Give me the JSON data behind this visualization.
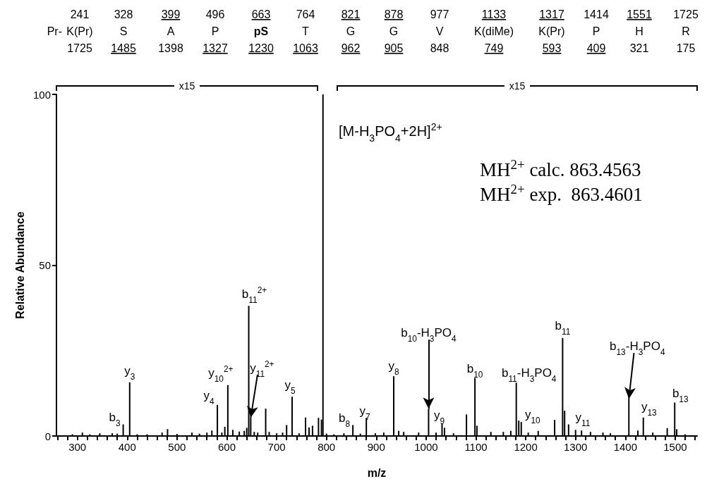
{
  "chart_data": {
    "type": "bar",
    "xlabel": "m/z",
    "ylabel": "Relative Abundance",
    "color": "#000000",
    "x": [
      290,
      310,
      325,
      345,
      370,
      380,
      392,
      405,
      420,
      440,
      470,
      481,
      500,
      530,
      545,
      560,
      570,
      581,
      590,
      596,
      602,
      612,
      625,
      635,
      640,
      644,
      648,
      655,
      662,
      678,
      685,
      700,
      712,
      720,
      731,
      745,
      758,
      765,
      772,
      784,
      790,
      793,
      800,
      815,
      835,
      853,
      868,
      880,
      898,
      915,
      935,
      945,
      955,
      985,
      1005,
      1020,
      1032,
      1037,
      1055,
      1081,
      1098,
      1102,
      1130,
      1155,
      1170,
      1181,
      1186,
      1191,
      1205,
      1225,
      1258,
      1274,
      1278,
      1286,
      1300,
      1312,
      1330,
      1355,
      1370,
      1407,
      1425,
      1436,
      1455,
      1484,
      1499,
      1503,
      1520
    ],
    "values": [
      0.5,
      1.0,
      0.5,
      0.8,
      0.8,
      0.7,
      3.4,
      15.7,
      0.5,
      0.5,
      1.0,
      2.0,
      0.6,
      1.0,
      0.7,
      1.0,
      1.6,
      9.1,
      1.0,
      2.7,
      14.9,
      1.8,
      1.3,
      1.5,
      2.4,
      38.1,
      5.4,
      1.2,
      1.0,
      8.0,
      1.2,
      0.8,
      1.0,
      3.2,
      11.5,
      0.8,
      5.4,
      2.5,
      3.0,
      5.3,
      4.8,
      100,
      0.7,
      0.5,
      0.8,
      3.2,
      0.7,
      5.3,
      0.8,
      1.0,
      17.5,
      1.5,
      1.2,
      1.0,
      8.0,
      1.0,
      3.6,
      2.4,
      0.8,
      6.3,
      17.0,
      3.0,
      1.2,
      1.2,
      1.5,
      15.6,
      4.5,
      4.1,
      1.0,
      1.5,
      4.7,
      28.7,
      7.4,
      3.4,
      1.8,
      1.6,
      1.2,
      1.0,
      0.8,
      10.9,
      1.6,
      5.4,
      1.0,
      2.3,
      9.8,
      2.0,
      0.5
    ],
    "xlim": [
      258,
      1544
    ],
    "xticks": [
      300,
      400,
      500,
      600,
      700,
      800,
      900,
      1000,
      1100,
      1200,
      1300,
      1400,
      1500
    ],
    "ylim": [
      0,
      100
    ],
    "yticks": [
      0,
      50,
      100
    ],
    "annotations": [
      "241",
      "328",
      "399",
      "496",
      "663",
      "764",
      "821",
      "878",
      "977",
      "1133",
      "1317",
      "1414",
      "1551",
      "1725",
      "Pr-",
      "K(Pr)",
      "S",
      "A",
      "P",
      "pS",
      "T",
      "G",
      "G",
      "V",
      "K(diMe)",
      "K(Pr)",
      "P",
      "H",
      "R",
      "1725",
      "1485",
      "1398",
      "1327",
      "1230",
      "1063",
      "962",
      "905",
      "848",
      "749",
      "593",
      "409",
      "321",
      "175",
      "[M-H$_{3}$PO$_{4}$+2H]$^{2+}$",
      "MH$^{2+}$ calc. 863.4563",
      "MH$^{2+}$ exp.  863.4601",
      "x15",
      "x15",
      {
        "text": "b$_{3}$",
        "x": 392,
        "y": 3.4
      },
      {
        "text": "y$_{3}$",
        "x": 405,
        "y": 15.7
      },
      {
        "text": "y$_{4}$",
        "x": 581,
        "y": 9.1
      },
      {
        "text": "y$_{10}$$^{2+}$",
        "x": 602,
        "y": 14.9
      },
      {
        "text": "b$_{11}$$^{2+}$",
        "x": 644,
        "y": 38.1
      },
      {
        "text": "y$_{11}$$^{2+}$",
        "x": 648,
        "y": 5.4
      },
      {
        "text": "y$_{5}$",
        "x": 731,
        "y": 11.5
      },
      {
        "text": "b$_{8}$",
        "x": 853,
        "y": 3.2
      },
      {
        "text": "y$_{7}$",
        "x": 880,
        "y": 5.3
      },
      {
        "text": "y$_{8}$",
        "x": 935,
        "y": 17.5
      },
      {
        "text": "b$_{10}$-H$_{3}$PO$_{4}$",
        "x": 1005,
        "y": 8.0
      },
      {
        "text": "y$_{9}$",
        "x": 1032,
        "y": 3.6
      },
      {
        "text": "b$_{10}$",
        "x": 1098,
        "y": 17.0
      },
      {
        "text": "b$_{11}$-H$_{3}$PO$_{4}$",
        "x": 1181,
        "y": 15.6
      },
      {
        "text": "y$_{10}$",
        "x": 1191,
        "y": 4.1
      },
      {
        "text": "b$_{11}$",
        "x": 1274,
        "y": 28.7
      },
      {
        "text": "y$_{11}$",
        "x": 1286,
        "y": 3.4
      },
      {
        "text": "b$_{13}$-H$_{3}$PO$_{4}$",
        "x": 1407,
        "y": 10.9
      },
      {
        "text": "y$_{13}$",
        "x": 1436,
        "y": 5.4
      },
      {
        "text": "b$_{13}$",
        "x": 1499,
        "y": 9.8
      }
    ]
  }
}
